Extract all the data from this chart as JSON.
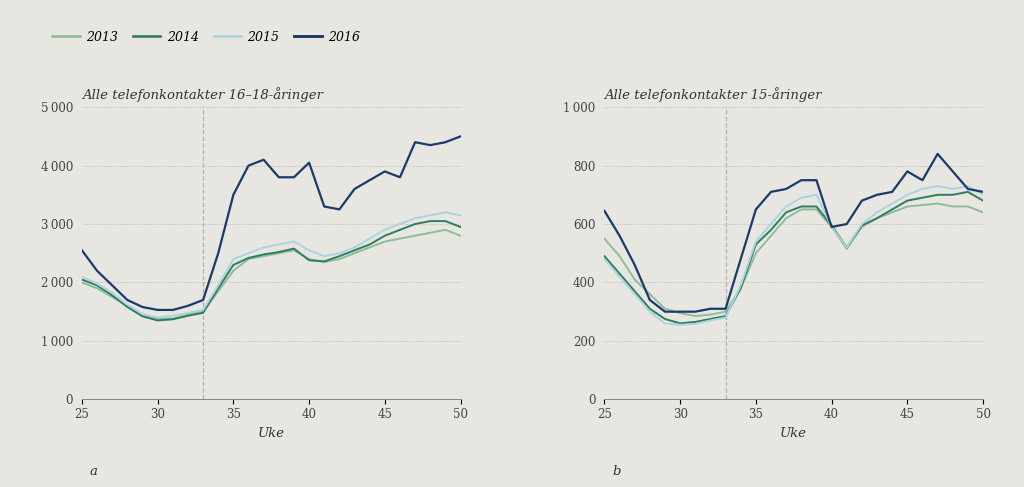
{
  "title_a": "Alle telefonkontakter 16–18-åringer",
  "title_b": "Alle telefonkontakter 15-åringer",
  "xlabel": "Uke",
  "label_a": "a",
  "label_b": "b",
  "bg_color": "#e8e6e0",
  "vline_x": 33,
  "years": [
    "2013",
    "2014",
    "2015",
    "2016"
  ],
  "colors": [
    "#8fbc9a",
    "#2e7d5e",
    "#aad4e0",
    "#1a3a6b"
  ],
  "linewidths": [
    1.4,
    1.4,
    1.4,
    1.6
  ],
  "weeks": [
    25,
    26,
    27,
    28,
    29,
    30,
    31,
    32,
    33,
    34,
    35,
    36,
    37,
    38,
    39,
    40,
    41,
    42,
    43,
    44,
    45,
    46,
    47,
    48,
    49,
    50
  ],
  "data_a": {
    "2013": [
      2000,
      1900,
      1750,
      1600,
      1450,
      1380,
      1380,
      1450,
      1500,
      1850,
      2200,
      2400,
      2450,
      2500,
      2550,
      2400,
      2350,
      2400,
      2500,
      2600,
      2700,
      2750,
      2800,
      2850,
      2900,
      2800
    ],
    "2014": [
      2050,
      1950,
      1780,
      1580,
      1420,
      1350,
      1370,
      1430,
      1480,
      1900,
      2300,
      2420,
      2480,
      2520,
      2580,
      2380,
      2360,
      2450,
      2550,
      2650,
      2800,
      2900,
      3000,
      3050,
      3050,
      2950
    ],
    "2015": [
      2100,
      1980,
      1820,
      1620,
      1460,
      1400,
      1430,
      1480,
      1530,
      1950,
      2400,
      2500,
      2600,
      2650,
      2700,
      2550,
      2450,
      2500,
      2600,
      2750,
      2900,
      3000,
      3100,
      3150,
      3200,
      3150
    ],
    "2016": [
      2550,
      2200,
      1950,
      1700,
      1580,
      1530,
      1530,
      1600,
      1700,
      2500,
      3500,
      4000,
      4100,
      3800,
      3800,
      4050,
      3300,
      3250,
      3600,
      3750,
      3900,
      3800,
      4400,
      4350,
      4400,
      4500
    ]
  },
  "data_b": {
    "2013": [
      550,
      490,
      410,
      360,
      310,
      295,
      285,
      290,
      300,
      380,
      500,
      560,
      620,
      650,
      650,
      590,
      515,
      590,
      620,
      640,
      660,
      665,
      670,
      660,
      660,
      640
    ],
    "2014": [
      490,
      430,
      370,
      310,
      275,
      260,
      265,
      275,
      285,
      380,
      530,
      580,
      640,
      660,
      660,
      595,
      520,
      595,
      620,
      650,
      680,
      690,
      700,
      700,
      710,
      680
    ],
    "2015": [
      480,
      420,
      360,
      300,
      260,
      255,
      258,
      270,
      280,
      390,
      540,
      600,
      660,
      690,
      700,
      590,
      520,
      600,
      640,
      670,
      700,
      720,
      730,
      720,
      730,
      700
    ],
    "2016": [
      645,
      560,
      460,
      340,
      300,
      300,
      300,
      310,
      310,
      480,
      650,
      710,
      720,
      750,
      750,
      590,
      600,
      680,
      700,
      710,
      780,
      750,
      840,
      780,
      720,
      710
    ]
  },
  "ylim_a": [
    0,
    5000
  ],
  "ylim_b": [
    0,
    1000
  ],
  "yticks_a": [
    0,
    1000,
    2000,
    3000,
    4000,
    5000
  ],
  "yticks_b": [
    0,
    200,
    400,
    600,
    800,
    1000
  ],
  "xlim": [
    25,
    50
  ],
  "xticks": [
    25,
    30,
    35,
    40,
    45,
    50
  ],
  "title_fontsize": 9.5,
  "tick_fontsize": 8.5,
  "legend_fontsize": 9,
  "axis_label_fontsize": 9.5
}
